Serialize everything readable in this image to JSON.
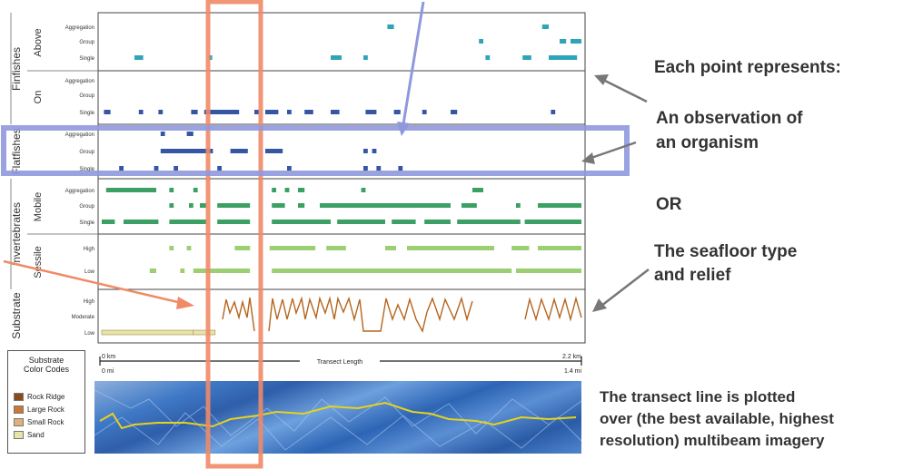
{
  "colors": {
    "teal": "#2fa3b7",
    "navy": "#3456a3",
    "green": "#3c9f64",
    "lightgreen": "#9bcf72",
    "brown": "#b5651d",
    "orange_box": "#f08a67",
    "blue_box": "#8f98dd",
    "grey_arrow": "#777777"
  },
  "groups": [
    {
      "id": "finfishes",
      "name": "Finfishes",
      "subgroups": [
        {
          "id": "above",
          "name": "Above",
          "rows": [
            "Aggregation",
            "Group",
            "Single"
          ]
        },
        {
          "id": "on",
          "name": "On",
          "rows": [
            "Aggregation",
            "Group",
            "Single"
          ]
        }
      ]
    },
    {
      "id": "flatfishes",
      "name": "Flatfishes",
      "subgroups": [
        {
          "id": "flat",
          "name": "",
          "rows": [
            "Aggregation",
            "Group",
            "Single"
          ]
        }
      ]
    },
    {
      "id": "invertebrates",
      "name": "Invertebrates",
      "subgroups": [
        {
          "id": "mobile",
          "name": "Mobile",
          "rows": [
            "Aggregation",
            "Group",
            "Single"
          ]
        },
        {
          "id": "sessile",
          "name": "Sessile",
          "rows": [
            "High",
            "Low"
          ]
        }
      ]
    },
    {
      "id": "substrate",
      "name": "Substrate",
      "subgroups": [
        {
          "id": "sub",
          "name": "",
          "rows": [
            "High",
            "Moderate",
            "Low"
          ]
        }
      ]
    }
  ],
  "axis": {
    "label": "Transect Length",
    "start_km": "0 km",
    "end_km": "2.2 km",
    "start_mi": "0 mi",
    "end_mi": "1.4 mi"
  },
  "legend": {
    "title_line1": "Substrate",
    "title_line2": "Color Codes",
    "items": [
      {
        "label": "Rock Ridge",
        "color": "#8a4a1c"
      },
      {
        "label": "Large Rock",
        "color": "#c7783a"
      },
      {
        "label": "Small Rock",
        "color": "#e0b27a"
      },
      {
        "label": "Sand",
        "color": "#e9e3a7"
      }
    ]
  },
  "annotations": {
    "each_point": "Each point represents:",
    "observation_line1": "An observation of",
    "observation_line2": "an organism",
    "or": "OR",
    "seafloor_line1": "The seafloor type",
    "seafloor_line2": "and relief",
    "transect_line1": "The transect line is plotted",
    "transect_line2": "over (the best available, highest",
    "transect_line3": "resolution) multibeam imagery"
  },
  "chart_data": {
    "type": "scatter",
    "x_range_km": [
      0,
      2.2
    ],
    "xlabel": "Transect Length",
    "series": [
      {
        "row": "Finfishes Above Aggregation",
        "color": "#2fa3b7",
        "segments": [
          [
            1.31,
            1.34
          ],
          [
            2.02,
            2.05
          ]
        ]
      },
      {
        "row": "Finfishes Above Group",
        "color": "#2fa3b7",
        "segments": [
          [
            1.73,
            1.75
          ],
          [
            2.1,
            2.13
          ],
          [
            2.15,
            2.2
          ]
        ]
      },
      {
        "row": "Finfishes Above Single",
        "color": "#2fa3b7",
        "segments": [
          [
            0.15,
            0.19
          ],
          [
            0.49,
            0.5
          ],
          [
            1.05,
            1.1
          ],
          [
            1.2,
            1.22
          ],
          [
            1.76,
            1.78
          ],
          [
            1.93,
            1.97
          ],
          [
            2.05,
            2.18
          ]
        ]
      },
      {
        "row": "Finfishes On Single",
        "color": "#3456a3",
        "segments": [
          [
            0.01,
            0.04
          ],
          [
            0.17,
            0.19
          ],
          [
            0.26,
            0.28
          ],
          [
            0.41,
            0.44
          ],
          [
            0.47,
            0.63
          ],
          [
            0.7,
            0.72
          ],
          [
            0.75,
            0.81
          ],
          [
            0.85,
            0.87
          ],
          [
            0.93,
            0.97
          ],
          [
            1.05,
            1.09
          ],
          [
            1.21,
            1.26
          ],
          [
            1.34,
            1.37
          ],
          [
            1.47,
            1.49
          ],
          [
            1.6,
            1.63
          ],
          [
            2.06,
            2.08
          ]
        ]
      },
      {
        "row": "Flatfishes Aggregation",
        "color": "#3456a3",
        "segments": [
          [
            0.27,
            0.29
          ],
          [
            0.39,
            0.42
          ]
        ]
      },
      {
        "row": "Flatfishes Group",
        "color": "#3456a3",
        "segments": [
          [
            0.27,
            0.51
          ],
          [
            0.59,
            0.67
          ],
          [
            0.75,
            0.83
          ],
          [
            1.2,
            1.22
          ],
          [
            1.24,
            1.26
          ]
        ]
      },
      {
        "row": "Flatfishes Single",
        "color": "#3456a3",
        "segments": [
          [
            0.08,
            0.1
          ],
          [
            0.24,
            0.26
          ],
          [
            0.33,
            0.35
          ],
          [
            0.53,
            0.55
          ],
          [
            0.85,
            0.87
          ],
          [
            1.2,
            1.22
          ],
          [
            1.26,
            1.28
          ],
          [
            1.36,
            1.38
          ]
        ]
      },
      {
        "row": "Invertebrates Mobile Aggregation",
        "color": "#3c9f64",
        "segments": [
          [
            0.02,
            0.25
          ],
          [
            0.31,
            0.33
          ],
          [
            0.42,
            0.44
          ],
          [
            0.78,
            0.8
          ],
          [
            0.84,
            0.86
          ],
          [
            0.9,
            0.93
          ],
          [
            1.19,
            1.21
          ],
          [
            1.7,
            1.75
          ]
        ]
      },
      {
        "row": "Invertebrates Mobile Group",
        "color": "#3c9f64",
        "segments": [
          [
            0.31,
            0.33
          ],
          [
            0.4,
            0.42
          ],
          [
            0.45,
            0.48
          ],
          [
            0.53,
            0.68
          ],
          [
            0.78,
            0.84
          ],
          [
            0.9,
            0.93
          ],
          [
            1.0,
            1.6
          ],
          [
            1.65,
            1.72
          ],
          [
            1.9,
            1.92
          ],
          [
            2.0,
            2.2
          ]
        ]
      },
      {
        "row": "Invertebrates Mobile Single",
        "color": "#3c9f64",
        "segments": [
          [
            0.0,
            0.06
          ],
          [
            0.1,
            0.26
          ],
          [
            0.31,
            0.48
          ],
          [
            0.53,
            0.68
          ],
          [
            0.78,
            1.05
          ],
          [
            1.08,
            1.3
          ],
          [
            1.33,
            1.44
          ],
          [
            1.48,
            1.6
          ],
          [
            1.63,
            1.92
          ],
          [
            1.94,
            2.2
          ]
        ]
      },
      {
        "row": "Invertebrates Sessile High",
        "color": "#9bcf72",
        "segments": [
          [
            0.31,
            0.33
          ],
          [
            0.39,
            0.41
          ],
          [
            0.61,
            0.68
          ],
          [
            0.77,
            0.98
          ],
          [
            1.03,
            1.12
          ],
          [
            1.3,
            1.35
          ],
          [
            1.4,
            1.8
          ],
          [
            1.88,
            1.96
          ],
          [
            2.0,
            2.2
          ]
        ]
      },
      {
        "row": "Invertebrates Sessile Low",
        "color": "#9bcf72",
        "segments": [
          [
            0.22,
            0.25
          ],
          [
            0.36,
            0.38
          ],
          [
            0.42,
            0.68
          ],
          [
            0.78,
            1.3
          ],
          [
            1.3,
            1.88
          ],
          [
            1.9,
            2.2
          ]
        ]
      },
      {
        "row": "Substrate Low",
        "color": "#e9e3a7",
        "segments": [
          [
            0.0,
            0.42
          ],
          [
            0.42,
            0.52
          ]
        ]
      }
    ]
  }
}
